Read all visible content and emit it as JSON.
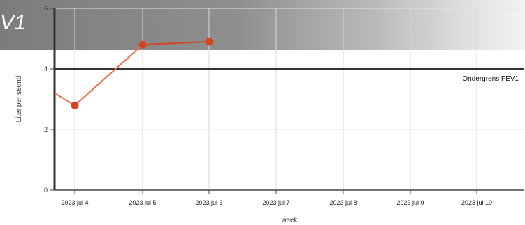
{
  "header": {
    "title": "V1"
  },
  "chart_data": {
    "type": "line",
    "x": [
      "2023 jul 4",
      "2023 jul 5",
      "2023 jul 6",
      "2023 jul 7",
      "2023 jul 8",
      "2023 jul 9",
      "2023 jul 10"
    ],
    "xlabel": "week",
    "ylabel": "Liter per seond",
    "ylim": [
      0,
      6
    ],
    "yticks": [
      "0",
      "2",
      "4",
      "6"
    ],
    "series": [
      {
        "values": [
          {
            "x": "2023 jul 4",
            "y": 2.8
          },
          {
            "x": "2023 jul 5",
            "y": 4.8
          },
          {
            "x": "2023 jul 6",
            "y": 4.9
          }
        ],
        "color": "#f26b4a",
        "marker_color": "#d2451f"
      }
    ],
    "reference_line": {
      "label": "Ondergrens FEV1",
      "y": 4.0,
      "color": "#333333"
    },
    "grid": true
  }
}
